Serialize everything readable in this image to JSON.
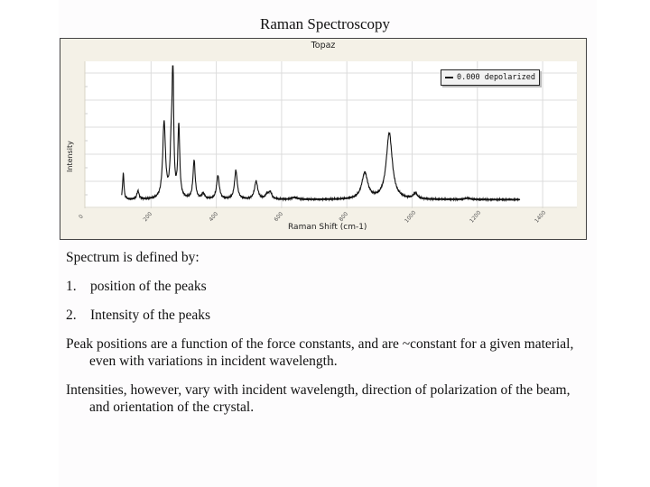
{
  "slide": {
    "title": "Raman Spectroscopy",
    "body": {
      "intro": "Spectrum is defined by:",
      "list": [
        {
          "num": "1.",
          "text": "position of the peaks"
        },
        {
          "num": "2.",
          "text": "Intensity of the peaks"
        }
      ],
      "paragraphs": [
        "Peak positions are a function of the force constants, and are ~constant for a given material, even with variations in incident wavelength.",
        "Intensities, however, vary with incident wavelength, direction of polarization of the beam, and orientation of the crystal."
      ]
    }
  },
  "chart_data": {
    "type": "line",
    "title": "Topaz",
    "xlabel": "Raman Shift (cm-1)",
    "ylabel": "Intensity",
    "xlim": [
      0,
      1500
    ],
    "ylim": [
      0,
      1.0
    ],
    "x_ticks": [
      "0",
      "200",
      "400",
      "600",
      "800",
      "1000",
      "1200",
      "1400"
    ],
    "y_ticks": [],
    "grid": true,
    "legend": {
      "position": "upper right",
      "entries": [
        "0.000 depolarized"
      ]
    },
    "series": [
      {
        "name": "0.000 depolarized",
        "x_range": [
          110,
          1330
        ],
        "baseline": 0.03,
        "peaks": [
          {
            "x": 115,
            "height": 0.19,
            "width": 2.5
          },
          {
            "x": 160,
            "height": 0.06,
            "width": 4
          },
          {
            "x": 240,
            "height": 0.55,
            "width": 5
          },
          {
            "x": 267,
            "height": 1.0,
            "width": 2.5
          },
          {
            "x": 262,
            "height": 0.35,
            "width": 4
          },
          {
            "x": 285,
            "height": 0.52,
            "width": 3.5
          },
          {
            "x": 332,
            "height": 0.28,
            "width": 4
          },
          {
            "x": 360,
            "height": 0.04,
            "width": 5
          },
          {
            "x": 405,
            "height": 0.17,
            "width": 5
          },
          {
            "x": 460,
            "height": 0.21,
            "width": 5
          },
          {
            "x": 522,
            "height": 0.13,
            "width": 6
          },
          {
            "x": 555,
            "height": 0.03,
            "width": 6
          },
          {
            "x": 565,
            "height": 0.05,
            "width": 6
          },
          {
            "x": 640,
            "height": 0.015,
            "width": 10
          },
          {
            "x": 855,
            "height": 0.19,
            "width": 11
          },
          {
            "x": 930,
            "height": 0.48,
            "width": 11
          },
          {
            "x": 1010,
            "height": 0.04,
            "width": 8
          },
          {
            "x": 1170,
            "height": 0.01,
            "width": 10
          }
        ]
      }
    ]
  }
}
